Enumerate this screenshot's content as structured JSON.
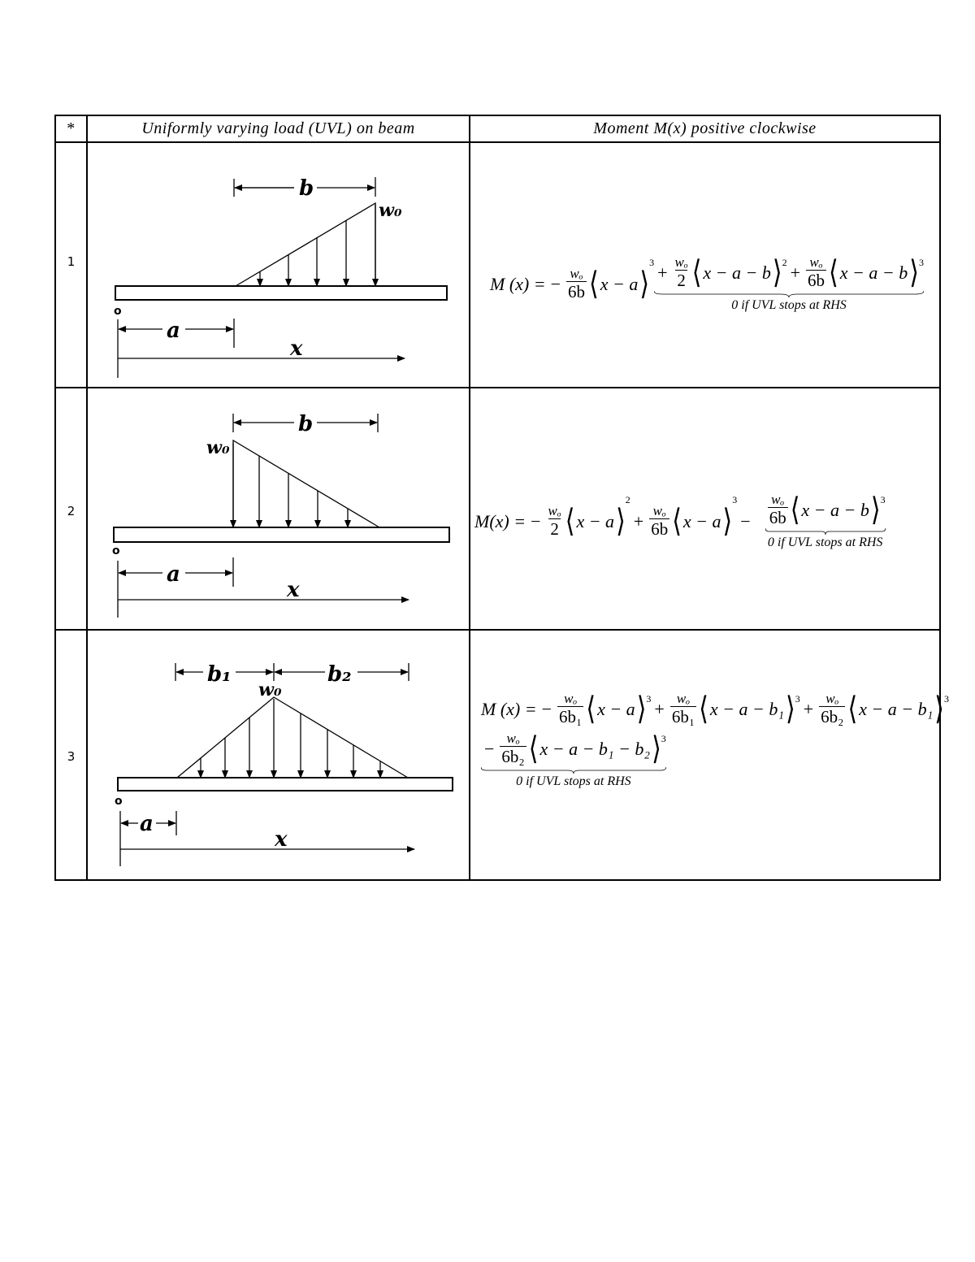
{
  "table": {
    "headers": [
      "*",
      "Uniformly varying load (UVL) on beam",
      "Moment M(x) positive clockwise"
    ],
    "rows": [
      {
        "number": "1",
        "labels": {
          "b": "b",
          "w": "w₀",
          "origin": "o",
          "a": "a",
          "x": "x"
        }
      },
      {
        "number": "2",
        "labels": {
          "b": "b",
          "w": "w₀",
          "origin": "o",
          "a": "a",
          "x": "x"
        }
      },
      {
        "number": "3",
        "labels": {
          "b1": "b₁",
          "b2": "b₂",
          "w": "w₀",
          "origin": "o",
          "a": "a",
          "x": "x"
        }
      }
    ]
  },
  "formulas": [
    {
      "lhs": "M (x) =",
      "lines": [
        [
          {
            "sign": "−",
            "num": "wₒ",
            "den": "6b",
            "inner": "x − a",
            "exp": "3"
          },
          {
            "brace_label": "0 if UVL stops at RHS",
            "terms": [
              {
                "sign": "+",
                "num": "wₒ",
                "den": "2",
                "inner": "x − a − b",
                "exp": "2"
              },
              {
                "sign": "+",
                "num": "wₒ",
                "den": "6b",
                "inner": "x − a − b",
                "exp": "3"
              }
            ]
          }
        ]
      ]
    },
    {
      "lhs": "M(x) =",
      "lines": [
        [
          {
            "sign": "−",
            "num": "wₒ",
            "den": "2",
            "inner": "x − a",
            "exp": "2"
          },
          {
            "sign": "+",
            "num": "wₒ",
            "den": "6b",
            "inner": "x − a",
            "exp": "3"
          },
          {
            "sign": "−",
            "num": "",
            "den": "",
            "inner": "",
            "exp": ""
          },
          {
            "brace_label": "0 if UVL stops at RHS",
            "terms": [
              {
                "sign": "",
                "num": "wₒ",
                "den": "6b",
                "inner": "x − a − b",
                "exp": "3"
              }
            ]
          }
        ]
      ]
    },
    {
      "lhs": "M (x) =",
      "lines": [
        [
          {
            "sign": "−",
            "num": "wₒ",
            "den": "6b₁",
            "inner": "x − a",
            "exp": "3"
          },
          {
            "sign": "+",
            "num": "wₒ",
            "den": "6b₁",
            "inner": "x − a − b₁",
            "exp": "3"
          },
          {
            "sign": "+",
            "num": "wₒ",
            "den": "6b₂",
            "inner": "x − a − b₁",
            "exp": "3"
          }
        ],
        [
          {
            "brace_label": "0 if UVL stops at RHS",
            "terms": [
              {
                "sign": "−",
                "num": "wₒ",
                "den": "6b₂",
                "inner": "x − a − b₁ − b₂",
                "exp": "3"
              }
            ]
          }
        ]
      ]
    }
  ]
}
